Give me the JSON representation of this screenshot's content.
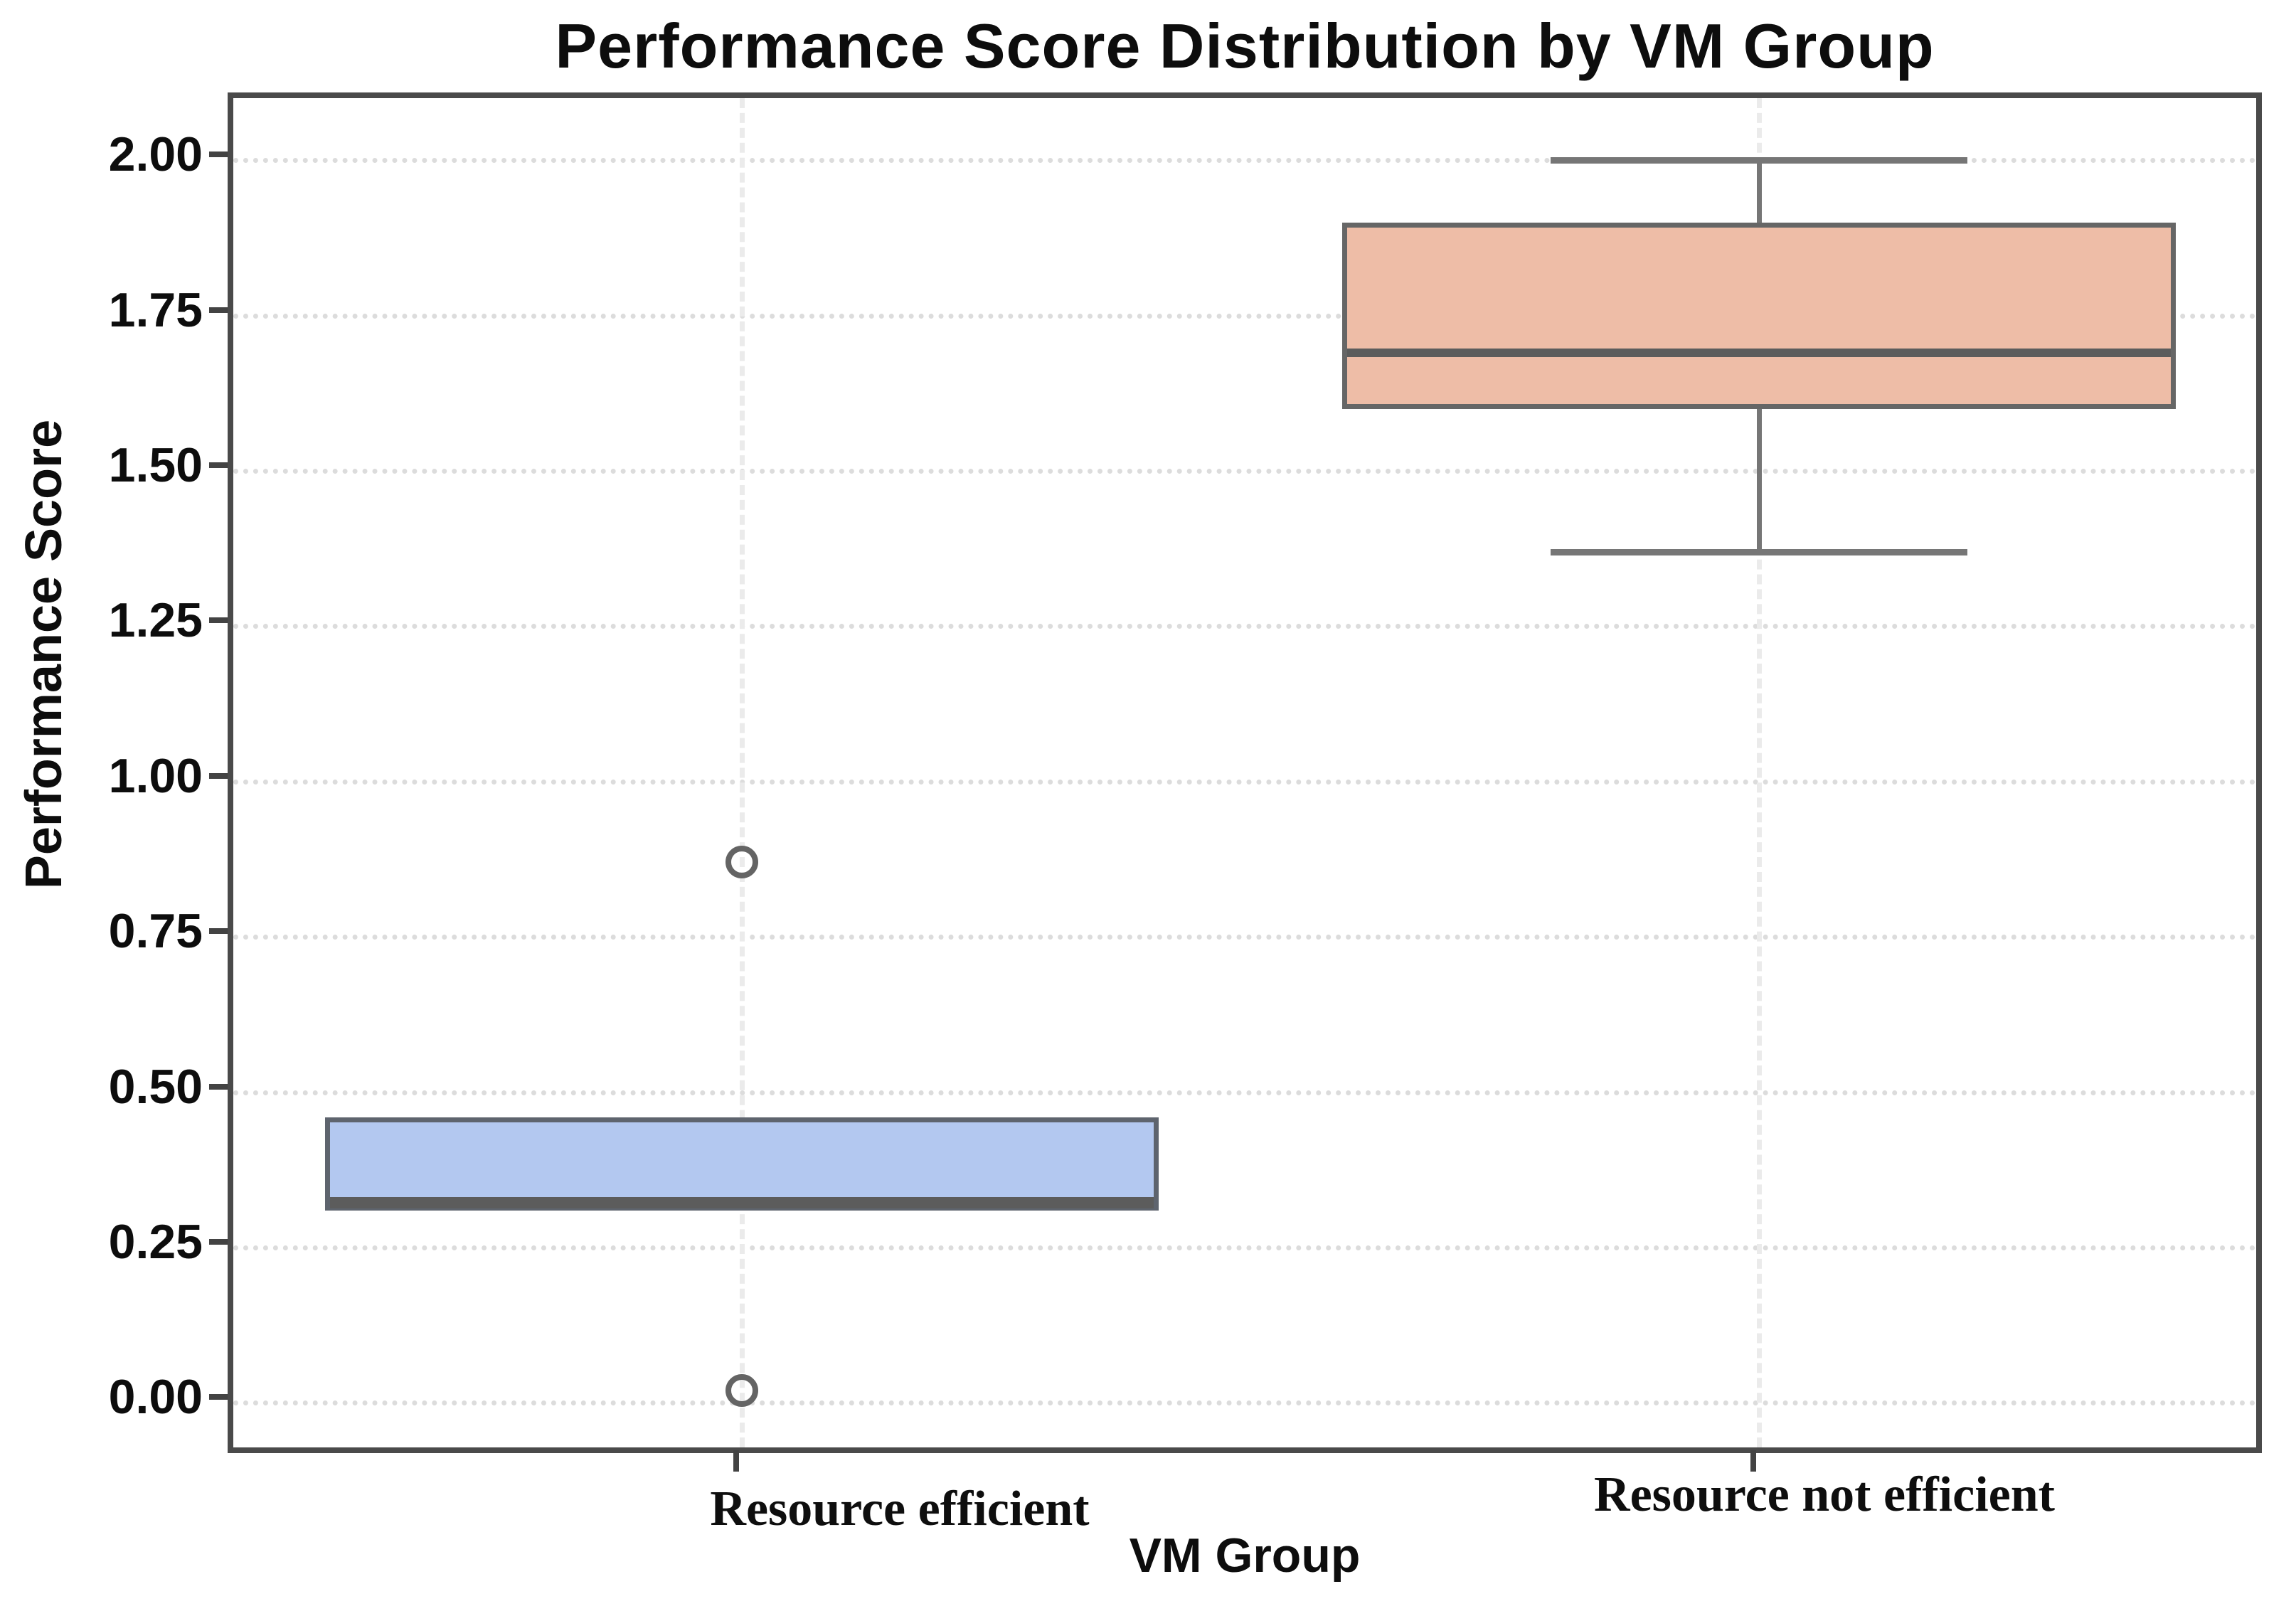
{
  "chart_data": {
    "type": "boxplot",
    "title": "Performance Score Distribution by VM Group",
    "xlabel": "VM Group",
    "ylabel": "Performance Score",
    "ylim": [
      -0.09,
      2.1
    ],
    "yticks": [
      0.0,
      0.25,
      0.5,
      0.75,
      1.0,
      1.25,
      1.5,
      1.75,
      2.0
    ],
    "ytick_labels": [
      "0.00",
      "0.25",
      "0.50",
      "0.75",
      "1.00",
      "1.25",
      "1.50",
      "1.75",
      "2.00"
    ],
    "grid": {
      "horizontal": "dotted",
      "vertical_at_categories": "dashed",
      "color": "#dcdcdc"
    },
    "legend": "none",
    "colors": {
      "box_fill_group1": "#b3c8f0",
      "box_fill_group2": "#eebda7",
      "box_edge": "#5e646e",
      "median": "#5c5c5c",
      "whisker": "#767676",
      "outlier_edge": "#646464",
      "spine": "#4a4a4a",
      "text": "#0d0d0d"
    },
    "groups": [
      {
        "label": "Resource efficient",
        "x_frac": 0.25,
        "fill": "#b3c8f0",
        "edge": "#5e646e",
        "q1": 0.31,
        "median": 0.31,
        "q3": 0.46,
        "whisker_low": 0.31,
        "whisker_high": 0.46,
        "outliers": [
          0.87,
          0.02
        ]
      },
      {
        "label": "Resource not efficient",
        "x_frac": 0.75,
        "fill": "#eebda7",
        "edge": "#666666",
        "q1": 1.6,
        "median": 1.69,
        "q3": 1.9,
        "whisker_low": 1.37,
        "whisker_high": 2.0,
        "outliers": []
      }
    ]
  }
}
